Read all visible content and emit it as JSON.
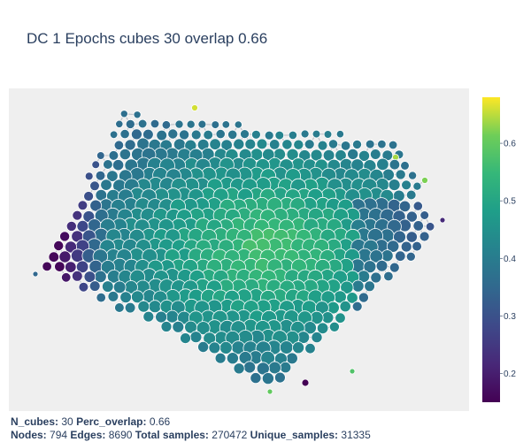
{
  "title": "DC 1 Epochs cubes 30 overlap 0.66",
  "footer": {
    "line1": [
      {
        "label": "N_cubes:",
        "value": "30"
      },
      {
        "label": "Perc_overlap:",
        "value": "0.66"
      }
    ],
    "line2": [
      {
        "label": "Nodes:",
        "value": "794"
      },
      {
        "label": "Edges:",
        "value": "8690"
      },
      {
        "label": "Total samples:",
        "value": "270472"
      },
      {
        "label": "Unique_samples:",
        "value": "31335"
      }
    ]
  },
  "colors": {
    "plot_bg": "#efefef",
    "edge": "#b8bcc4",
    "marker_outline": "#ffffff"
  },
  "chart_data": {
    "type": "scatter",
    "title": "DC 1 Epochs cubes 30 overlap 0.66",
    "xlabel": "",
    "ylabel": "",
    "colorscale": "Viridis",
    "colorbar": {
      "range": [
        0.15,
        0.68
      ],
      "ticks": [
        0.2,
        0.3,
        0.4,
        0.5,
        0.6
      ],
      "tick_labels": [
        "0.2",
        "0.3",
        "0.4",
        "0.5",
        "0.6"
      ]
    },
    "nodes": 794,
    "edges": 8690,
    "grid": false,
    "legend": "none"
  }
}
